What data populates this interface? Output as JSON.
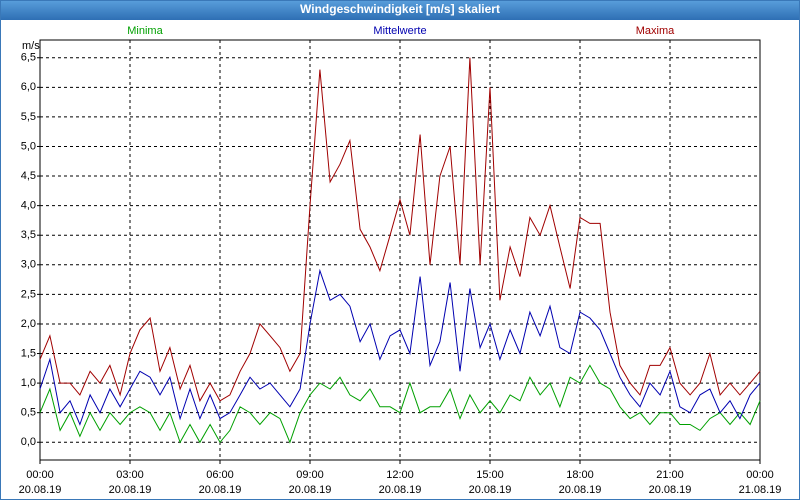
{
  "chart_data": {
    "type": "line",
    "title": "Windgeschwindigkeit [m/s] skaliert",
    "y_label": "m/s",
    "x": [
      0,
      0.33,
      0.67,
      1,
      1.33,
      1.67,
      2,
      2.33,
      2.67,
      3,
      3.33,
      3.67,
      4,
      4.33,
      4.67,
      5,
      5.33,
      5.67,
      6,
      6.33,
      6.67,
      7,
      7.33,
      7.67,
      8,
      8.33,
      8.67,
      9,
      9.33,
      9.67,
      10,
      10.33,
      10.67,
      11,
      11.33,
      11.67,
      12,
      12.33,
      12.67,
      13,
      13.33,
      13.67,
      14,
      14.33,
      14.67,
      15,
      15.33,
      15.67,
      16,
      16.33,
      16.67,
      17,
      17.33,
      17.67,
      18,
      18.33,
      18.67,
      19,
      19.33,
      19.67,
      20,
      20.33,
      20.67,
      21,
      21.33,
      21.67,
      22,
      22.33,
      22.67,
      23,
      23.33,
      23.67,
      24
    ],
    "series": [
      {
        "name": "Minima",
        "color": "#00a000",
        "values": [
          0.5,
          0.9,
          0.2,
          0.5,
          0.1,
          0.5,
          0.2,
          0.5,
          0.3,
          0.5,
          0.6,
          0.5,
          0.2,
          0.5,
          0.0,
          0.3,
          0.0,
          0.3,
          0.0,
          0.2,
          0.6,
          0.5,
          0.3,
          0.5,
          0.4,
          0.0,
          0.5,
          0.8,
          1.0,
          0.9,
          1.1,
          0.8,
          0.7,
          0.9,
          0.6,
          0.6,
          0.5,
          1.0,
          0.5,
          0.6,
          0.6,
          0.9,
          0.4,
          0.8,
          0.5,
          0.7,
          0.5,
          0.8,
          0.7,
          1.1,
          0.8,
          1.0,
          0.6,
          1.1,
          1.0,
          1.3,
          1.0,
          0.9,
          0.6,
          0.4,
          0.5,
          0.3,
          0.5,
          0.5,
          0.3,
          0.3,
          0.2,
          0.4,
          0.5,
          0.3,
          0.5,
          0.3,
          0.7
        ]
      },
      {
        "name": "Mittelwerte",
        "color": "#0000b0",
        "values": [
          0.9,
          1.4,
          0.5,
          0.7,
          0.3,
          0.8,
          0.5,
          0.9,
          0.6,
          0.9,
          1.2,
          1.1,
          0.8,
          1.1,
          0.4,
          0.9,
          0.4,
          0.8,
          0.4,
          0.5,
          0.8,
          1.1,
          0.9,
          1.0,
          0.8,
          0.6,
          0.9,
          2.0,
          2.9,
          2.4,
          2.5,
          2.3,
          1.7,
          2.0,
          1.4,
          1.8,
          1.9,
          1.5,
          2.8,
          1.3,
          1.7,
          2.7,
          1.2,
          2.6,
          1.6,
          2.0,
          1.4,
          1.9,
          1.5,
          2.2,
          1.8,
          2.3,
          1.6,
          1.5,
          2.2,
          2.1,
          1.9,
          1.5,
          1.1,
          0.8,
          0.6,
          1.0,
          0.8,
          1.2,
          0.6,
          0.5,
          0.8,
          0.9,
          0.5,
          0.7,
          0.4,
          0.8,
          1.0
        ]
      },
      {
        "name": "Maxima",
        "color": "#a00000",
        "values": [
          1.4,
          1.8,
          1.0,
          1.0,
          0.8,
          1.2,
          1.0,
          1.3,
          0.8,
          1.5,
          1.9,
          2.1,
          1.2,
          1.6,
          0.9,
          1.3,
          0.7,
          1.0,
          0.7,
          0.8,
          1.2,
          1.5,
          2.0,
          1.8,
          1.6,
          1.2,
          1.5,
          4.0,
          6.3,
          4.4,
          4.7,
          5.1,
          3.6,
          3.3,
          2.9,
          3.5,
          4.1,
          3.5,
          5.2,
          3.0,
          4.5,
          5.0,
          3.0,
          6.5,
          3.0,
          6.0,
          2.4,
          3.3,
          2.8,
          3.8,
          3.5,
          4.0,
          3.3,
          2.6,
          3.8,
          3.7,
          3.7,
          2.2,
          1.3,
          1.0,
          0.8,
          1.3,
          1.3,
          1.6,
          1.0,
          0.8,
          1.0,
          1.5,
          0.8,
          1.0,
          0.8,
          1.0,
          1.2
        ]
      }
    ],
    "xlim": [
      0,
      24
    ],
    "xticks": [
      {
        "value": 0,
        "label": "00:00 20.08.19"
      },
      {
        "value": 3,
        "label": "03:00 20.08.19"
      },
      {
        "value": 6,
        "label": "06:00 20.08.19"
      },
      {
        "value": 9,
        "label": "09:00 20.08.19"
      },
      {
        "value": 12,
        "label": "12:00 20.08.19"
      },
      {
        "value": 15,
        "label": "15:00 20.08.19"
      },
      {
        "value": 18,
        "label": "18:00 20.08.19"
      },
      {
        "value": 21,
        "label": "21:00 20.08.19"
      },
      {
        "value": 24,
        "label": "00:00 21.08.19"
      }
    ],
    "ylim": [
      -0.3,
      6.8
    ],
    "yticks": [
      {
        "value": 0,
        "label": "0,0"
      },
      {
        "value": 0.5,
        "label": "0,5"
      },
      {
        "value": 1,
        "label": "1,0"
      },
      {
        "value": 1.5,
        "label": "1,5"
      },
      {
        "value": 2,
        "label": "2,0"
      },
      {
        "value": 2.5,
        "label": "2,5"
      },
      {
        "value": 3,
        "label": "3,0"
      },
      {
        "value": 3.5,
        "label": "3,5"
      },
      {
        "value": 4,
        "label": "4,0"
      },
      {
        "value": 4.5,
        "label": "4,5"
      },
      {
        "value": 5,
        "label": "5,0"
      },
      {
        "value": 5.5,
        "label": "5,5"
      },
      {
        "value": 6,
        "label": "6,0"
      },
      {
        "value": 6.5,
        "label": "6,5"
      }
    ],
    "grid": true,
    "legend": "top"
  }
}
